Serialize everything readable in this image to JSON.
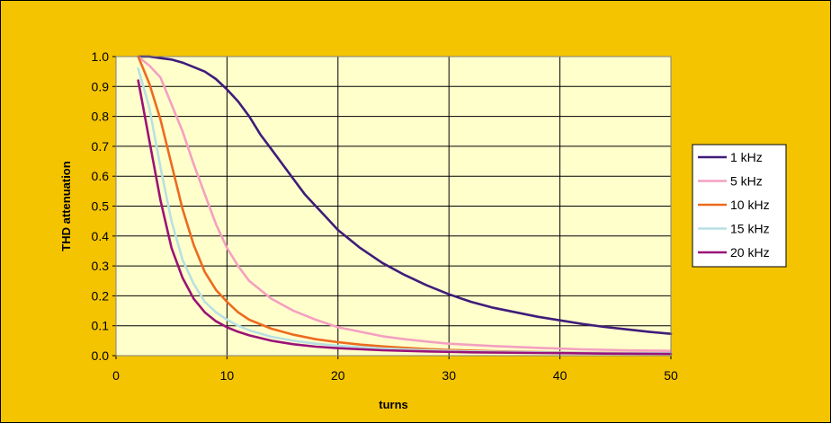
{
  "chart_data": {
    "type": "line",
    "title": "",
    "xlabel": "turns",
    "ylabel": "THD attenuation",
    "xlim": [
      0,
      50
    ],
    "ylim": [
      0,
      1
    ],
    "xticks": [
      "0",
      "10",
      "20",
      "30",
      "40",
      "50"
    ],
    "yticks": [
      "0.0",
      "0.1",
      "0.2",
      "0.3",
      "0.4",
      "0.5",
      "0.6",
      "0.7",
      "0.8",
      "0.9",
      "1.0"
    ],
    "grid": true,
    "legend_position": "right",
    "colors": {
      "background": "#f5c400",
      "plot_area": "#ffffcc",
      "grid": "#000000"
    },
    "series": [
      {
        "name": "1 kHz",
        "color": "#3f1c7a",
        "x": [
          2,
          3,
          4,
          5,
          6,
          7,
          8,
          9,
          10,
          11,
          12,
          13,
          14,
          15,
          16,
          17,
          18,
          19,
          20,
          22,
          24,
          26,
          28,
          30,
          32,
          34,
          36,
          38,
          40,
          42,
          44,
          46,
          48,
          50
        ],
        "y": [
          1.0,
          1.0,
          0.995,
          0.99,
          0.98,
          0.965,
          0.95,
          0.925,
          0.89,
          0.85,
          0.8,
          0.74,
          0.69,
          0.64,
          0.59,
          0.54,
          0.5,
          0.46,
          0.42,
          0.36,
          0.31,
          0.27,
          0.235,
          0.205,
          0.18,
          0.16,
          0.145,
          0.13,
          0.118,
          0.106,
          0.096,
          0.088,
          0.08,
          0.073
        ]
      },
      {
        "name": "5 kHz",
        "color": "#f4a0c0",
        "x": [
          2,
          3,
          4,
          5,
          6,
          7,
          8,
          9,
          10,
          11,
          12,
          14,
          16,
          18,
          20,
          22,
          24,
          26,
          28,
          30,
          34,
          38,
          42,
          46,
          50
        ],
        "y": [
          1.0,
          0.97,
          0.93,
          0.84,
          0.75,
          0.64,
          0.54,
          0.44,
          0.36,
          0.3,
          0.25,
          0.19,
          0.15,
          0.12,
          0.095,
          0.08,
          0.065,
          0.055,
          0.047,
          0.04,
          0.032,
          0.026,
          0.021,
          0.018,
          0.016
        ]
      },
      {
        "name": "10 kHz",
        "color": "#ec6b1f",
        "x": [
          2,
          3,
          4,
          5,
          6,
          7,
          8,
          9,
          10,
          11,
          12,
          14,
          16,
          18,
          20,
          22,
          24,
          26,
          28,
          30,
          34,
          38,
          42,
          46,
          50
        ],
        "y": [
          1.0,
          0.91,
          0.79,
          0.64,
          0.49,
          0.37,
          0.28,
          0.22,
          0.18,
          0.145,
          0.12,
          0.09,
          0.07,
          0.055,
          0.045,
          0.037,
          0.031,
          0.026,
          0.022,
          0.019,
          0.015,
          0.012,
          0.01,
          0.009,
          0.008
        ]
      },
      {
        "name": "15 kHz",
        "color": "#b8e0e4",
        "x": [
          2,
          3,
          4,
          5,
          6,
          7,
          8,
          9,
          10,
          11,
          12,
          14,
          16,
          18,
          20,
          24,
          28,
          32,
          38,
          44,
          50
        ],
        "y": [
          0.96,
          0.83,
          0.63,
          0.45,
          0.32,
          0.24,
          0.18,
          0.145,
          0.12,
          0.1,
          0.085,
          0.063,
          0.05,
          0.04,
          0.033,
          0.024,
          0.018,
          0.014,
          0.011,
          0.009,
          0.008
        ]
      },
      {
        "name": "20 kHz",
        "color": "#9b1277",
        "x": [
          2,
          3,
          4,
          5,
          6,
          7,
          8,
          9,
          10,
          11,
          12,
          14,
          16,
          18,
          20,
          24,
          28,
          32,
          38,
          44,
          50
        ],
        "y": [
          0.92,
          0.72,
          0.52,
          0.36,
          0.26,
          0.19,
          0.145,
          0.115,
          0.095,
          0.08,
          0.068,
          0.05,
          0.038,
          0.03,
          0.025,
          0.018,
          0.014,
          0.011,
          0.009,
          0.007,
          0.006
        ]
      }
    ]
  }
}
